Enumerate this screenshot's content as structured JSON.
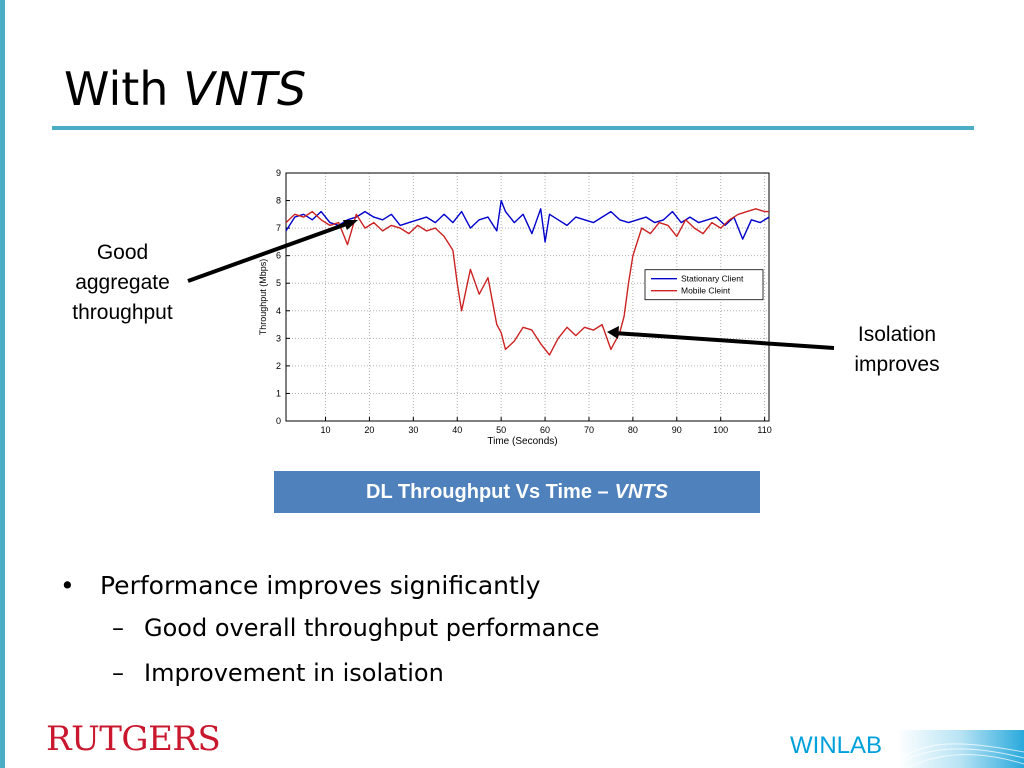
{
  "slide": {
    "title_plain": "With",
    "title_italic": "VNTS",
    "callout_left": [
      "Good",
      "aggregate",
      "throughput"
    ],
    "callout_right": [
      "Isolation",
      "improves"
    ],
    "caption_plain": "DL Throughput Vs Time –",
    "caption_italic": "VNTS",
    "bullet_main": "Performance improves significantly",
    "sub_bullets": [
      "Good overall throughput performance",
      "Improvement in isolation"
    ],
    "bullet_mark": "•",
    "dash_mark": "–",
    "logo_rutgers": "RUTGERS",
    "logo_winlab": "WINLAB",
    "colors": {
      "accent": "#4bacc6",
      "caption_bg": "#4f81bd",
      "rutgers_red": "#c9182e",
      "winlab_blue": "#00a0dc"
    }
  },
  "chart_data": {
    "type": "line",
    "xlabel": "Time (Seconds)",
    "ylabel": "Throughput (Mbps)",
    "xlim": [
      1,
      111
    ],
    "ylim": [
      0,
      9
    ],
    "xticks": [
      10,
      20,
      30,
      40,
      50,
      60,
      70,
      80,
      90,
      100,
      110
    ],
    "yticks": [
      0,
      1,
      2,
      3,
      4,
      5,
      6,
      7,
      8,
      9
    ],
    "grid": true,
    "legend_position": "right",
    "series": [
      {
        "name": "Stationary Client",
        "color": "#0000cc",
        "x": [
          1,
          3,
          5,
          7,
          9,
          11,
          13,
          15,
          17,
          19,
          21,
          23,
          25,
          27,
          29,
          31,
          33,
          35,
          37,
          39,
          41,
          43,
          45,
          47,
          49,
          50,
          51,
          53,
          55,
          57,
          59,
          60,
          61,
          63,
          65,
          67,
          69,
          71,
          73,
          75,
          77,
          79,
          81,
          83,
          85,
          87,
          89,
          91,
          93,
          95,
          97,
          99,
          101,
          103,
          105,
          107,
          109,
          111
        ],
        "values": [
          6.9,
          7.4,
          7.5,
          7.3,
          7.6,
          7.2,
          7.1,
          7.3,
          7.4,
          7.6,
          7.4,
          7.3,
          7.5,
          7.1,
          7.2,
          7.3,
          7.4,
          7.2,
          7.5,
          7.2,
          7.6,
          7.0,
          7.3,
          7.4,
          6.9,
          8.0,
          7.6,
          7.2,
          7.5,
          6.8,
          7.7,
          6.5,
          7.5,
          7.3,
          7.1,
          7.4,
          7.3,
          7.2,
          7.4,
          7.6,
          7.3,
          7.2,
          7.3,
          7.4,
          7.2,
          7.3,
          7.6,
          7.2,
          7.4,
          7.2,
          7.3,
          7.4,
          7.1,
          7.4,
          6.6,
          7.3,
          7.2,
          7.4
        ]
      },
      {
        "name": "Mobile Cleint",
        "color": "#cc2222",
        "x": [
          1,
          3,
          5,
          7,
          9,
          11,
          13,
          15,
          17,
          19,
          21,
          23,
          25,
          27,
          29,
          31,
          33,
          35,
          37,
          39,
          40,
          41,
          43,
          45,
          47,
          49,
          50,
          51,
          53,
          55,
          57,
          59,
          61,
          63,
          65,
          67,
          69,
          71,
          73,
          75,
          76,
          77,
          78,
          79,
          80,
          82,
          84,
          86,
          88,
          90,
          92,
          94,
          96,
          98,
          100,
          102,
          104,
          106,
          108,
          110,
          111
        ],
        "values": [
          7.2,
          7.5,
          7.4,
          7.6,
          7.3,
          7.1,
          7.2,
          6.4,
          7.5,
          7.0,
          7.2,
          6.9,
          7.1,
          7.0,
          6.8,
          7.1,
          6.9,
          7.0,
          6.7,
          6.2,
          5.0,
          4.0,
          5.5,
          4.6,
          5.2,
          3.5,
          3.2,
          2.6,
          2.9,
          3.4,
          3.3,
          2.8,
          2.4,
          3.0,
          3.4,
          3.1,
          3.4,
          3.3,
          3.5,
          2.6,
          2.9,
          3.2,
          3.8,
          5.0,
          6.0,
          7.0,
          6.8,
          7.2,
          7.1,
          6.7,
          7.3,
          7.0,
          6.8,
          7.2,
          7.0,
          7.3,
          7.5,
          7.6,
          7.7,
          7.6,
          7.6
        ]
      }
    ]
  }
}
